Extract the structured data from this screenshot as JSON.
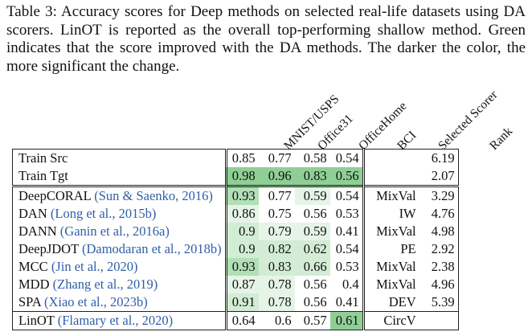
{
  "caption": "Table 3: Accuracy scores for Deep methods on selected real-life datasets using DA scorers. LinOT is reported as the overall top-performing shallow method. Green indicates that the score improved with the DA methods. The darker the color, the more significant the change.",
  "columns": [
    "MNIST/USPS",
    "Office31",
    "OfficeHome",
    "BCI",
    "Selected Scorer",
    "Rank"
  ],
  "colors": {
    "strong": "#8fcf96",
    "medium": "#b2dfb6",
    "light": "#d3ecd5",
    "faint": "#e6f4e7"
  },
  "baselines": [
    {
      "method": "Train Src",
      "scores": [
        "0.85",
        "0.77",
        "0.58",
        "0.54"
      ],
      "shade": [
        null,
        null,
        null,
        null
      ],
      "scorer": "",
      "rank": "6.19"
    },
    {
      "method": "Train Tgt",
      "scores": [
        "0.98",
        "0.96",
        "0.83",
        "0.56"
      ],
      "shade": [
        "strong",
        "strong",
        "strong",
        "strong"
      ],
      "scorer": "",
      "rank": "2.07"
    }
  ],
  "methods": [
    {
      "method": "DeepCORAL",
      "cite": "(Sun & Saenko, 2016)",
      "scores": [
        "0.93",
        "0.77",
        "0.59",
        "0.54"
      ],
      "shade": [
        "medium",
        null,
        "faint",
        null
      ],
      "scorer": "MixVal",
      "rank": "3.29"
    },
    {
      "method": "DAN",
      "cite": "(Long et al., 2015b)",
      "scores": [
        "0.86",
        "0.75",
        "0.56",
        "0.53"
      ],
      "shade": [
        "faint",
        null,
        null,
        null
      ],
      "scorer": "IW",
      "rank": "4.76"
    },
    {
      "method": "DANN",
      "cite": "(Ganin et al., 2016a)",
      "scores": [
        "0.9",
        "0.79",
        "0.59",
        "0.41"
      ],
      "shade": [
        "light",
        "faint",
        "faint",
        null
      ],
      "scorer": "MixVal",
      "rank": "4.98"
    },
    {
      "method": "DeepJDOT",
      "cite": "(Damodaran et al., 2018b)",
      "scores": [
        "0.9",
        "0.82",
        "0.62",
        "0.54"
      ],
      "shade": [
        "light",
        "light",
        "light",
        null
      ],
      "scorer": "PE",
      "rank": "2.92"
    },
    {
      "method": "MCC",
      "cite": "(Jin et al., 2020)",
      "scores": [
        "0.93",
        "0.83",
        "0.66",
        "0.53"
      ],
      "shade": [
        "medium",
        "light",
        "light",
        null
      ],
      "scorer": "MixVal",
      "rank": "2.38"
    },
    {
      "method": "MDD",
      "cite": "(Zhang et al., 2019)",
      "scores": [
        "0.87",
        "0.78",
        "0.56",
        "0.4"
      ],
      "shade": [
        "faint",
        "faint",
        null,
        null
      ],
      "scorer": "MixVal",
      "rank": "4.96"
    },
    {
      "method": "SPA",
      "cite": "(Xiao et al., 2023b)",
      "scores": [
        "0.91",
        "0.78",
        "0.56",
        "0.41"
      ],
      "shade": [
        "light",
        "faint",
        null,
        null
      ],
      "scorer": "DEV",
      "rank": "5.39"
    }
  ],
  "final": {
    "method": "LinOT",
    "cite": "(Flamary et al., 2020)",
    "scores": [
      "0.64",
      "0.6",
      "0.57",
      "0.61"
    ],
    "shade": [
      null,
      null,
      null,
      "strong"
    ],
    "scorer": "CircV",
    "rank": ""
  }
}
